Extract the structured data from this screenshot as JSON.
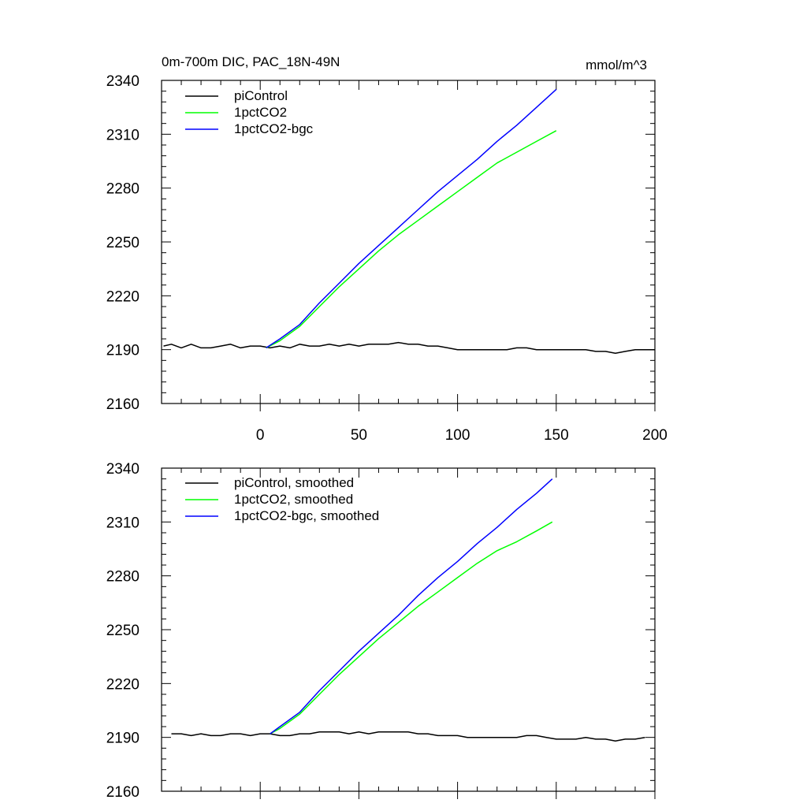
{
  "chart_data": [
    {
      "type": "line",
      "title_left": "0m-700m DIC, PAC_18N-49N",
      "title_right": "mmol/m^3",
      "xlim": [
        -50,
        200
      ],
      "ylim": [
        2160,
        2340
      ],
      "x_ticks": [
        0,
        50,
        100,
        150,
        200
      ],
      "x_tick_labels": [
        "0",
        "50",
        "100",
        "150",
        "200"
      ],
      "y_ticks": [
        2160,
        2190,
        2220,
        2250,
        2280,
        2310,
        2340
      ],
      "y_tick_labels": [
        "2160",
        "2190",
        "2220",
        "2250",
        "2280",
        "2310",
        "2340"
      ],
      "legend_placement": "top-left",
      "series": [
        {
          "name": "piControl",
          "color": "#000000",
          "x": [
            -49,
            -45,
            -40,
            -35,
            -30,
            -25,
            -20,
            -15,
            -10,
            -5,
            0,
            5,
            10,
            15,
            20,
            25,
            30,
            35,
            40,
            45,
            50,
            55,
            60,
            65,
            70,
            75,
            80,
            85,
            90,
            95,
            100,
            105,
            110,
            115,
            120,
            125,
            130,
            135,
            140,
            145,
            150,
            155,
            160,
            165,
            170,
            175,
            180,
            185,
            190,
            195,
            200
          ],
          "y": [
            2192,
            2193,
            2191,
            2193,
            2191,
            2191,
            2192,
            2193,
            2191,
            2192,
            2192,
            2191,
            2192,
            2191,
            2193,
            2192,
            2192,
            2193,
            2192,
            2193,
            2192,
            2193,
            2193,
            2193,
            2194,
            2193,
            2193,
            2192,
            2192,
            2191,
            2190,
            2190,
            2190,
            2190,
            2190,
            2190,
            2191,
            2191,
            2190,
            2190,
            2190,
            2190,
            2190,
            2190,
            2189,
            2189,
            2188,
            2189,
            2190,
            2190,
            2190
          ]
        },
        {
          "name": "1pctCO2",
          "color": "#00ff00",
          "x": [
            3,
            10,
            20,
            30,
            40,
            50,
            60,
            70,
            80,
            90,
            100,
            110,
            120,
            130,
            140,
            150
          ],
          "y": [
            2191,
            2195,
            2203,
            2214,
            2225,
            2235,
            2245,
            2254,
            2262,
            2270,
            2278,
            2286,
            2294,
            2300,
            2306,
            2312
          ]
        },
        {
          "name": "1pctCO2-bgc",
          "color": "#0000ff",
          "x": [
            3,
            10,
            20,
            30,
            40,
            50,
            60,
            70,
            80,
            90,
            100,
            110,
            120,
            130,
            140,
            150
          ],
          "y": [
            2191,
            2196,
            2204,
            2216,
            2227,
            2238,
            2248,
            2258,
            2268,
            2278,
            2287,
            2296,
            2306,
            2315,
            2325,
            2335
          ]
        }
      ]
    },
    {
      "type": "line",
      "xlim": [
        -50,
        200
      ],
      "ylim": [
        2160,
        2340
      ],
      "x_ticks": [
        0,
        50,
        100,
        150,
        200
      ],
      "y_ticks": [
        2160,
        2190,
        2220,
        2250,
        2280,
        2310,
        2340
      ],
      "y_tick_labels": [
        "2160",
        "2190",
        "2220",
        "2250",
        "2280",
        "2310",
        "2340"
      ],
      "legend_placement": "top-left",
      "series": [
        {
          "name": "piControl, smoothed",
          "color": "#000000",
          "x": [
            -45,
            -40,
            -35,
            -30,
            -25,
            -20,
            -15,
            -10,
            -5,
            0,
            5,
            10,
            15,
            20,
            25,
            30,
            35,
            40,
            45,
            50,
            55,
            60,
            65,
            70,
            75,
            80,
            85,
            90,
            95,
            100,
            105,
            110,
            115,
            120,
            125,
            130,
            135,
            140,
            145,
            150,
            155,
            160,
            165,
            170,
            175,
            180,
            185,
            190,
            195
          ],
          "y": [
            2192,
            2192,
            2191,
            2192,
            2191,
            2191,
            2192,
            2192,
            2191,
            2192,
            2192,
            2191,
            2191,
            2192,
            2192,
            2193,
            2193,
            2193,
            2192,
            2193,
            2192,
            2193,
            2193,
            2193,
            2193,
            2192,
            2192,
            2191,
            2191,
            2191,
            2190,
            2190,
            2190,
            2190,
            2190,
            2190,
            2191,
            2191,
            2190,
            2189,
            2189,
            2189,
            2190,
            2189,
            2189,
            2188,
            2189,
            2189,
            2190
          ]
        },
        {
          "name": "1pctCO2, smoothed",
          "color": "#00ff00",
          "x": [
            5,
            10,
            20,
            30,
            40,
            50,
            60,
            70,
            80,
            90,
            100,
            110,
            120,
            130,
            140,
            148
          ],
          "y": [
            2192,
            2195,
            2203,
            2214,
            2225,
            2235,
            2245,
            2254,
            2263,
            2271,
            2279,
            2287,
            2294,
            2299,
            2305,
            2310
          ]
        },
        {
          "name": "1pctCO2-bgc, smoothed",
          "color": "#0000ff",
          "x": [
            5,
            10,
            20,
            30,
            40,
            50,
            60,
            70,
            80,
            90,
            100,
            110,
            120,
            130,
            140,
            148
          ],
          "y": [
            2192,
            2196,
            2204,
            2216,
            2227,
            2238,
            2248,
            2258,
            2269,
            2279,
            2288,
            2298,
            2307,
            2317,
            2326,
            2334
          ]
        }
      ]
    }
  ]
}
